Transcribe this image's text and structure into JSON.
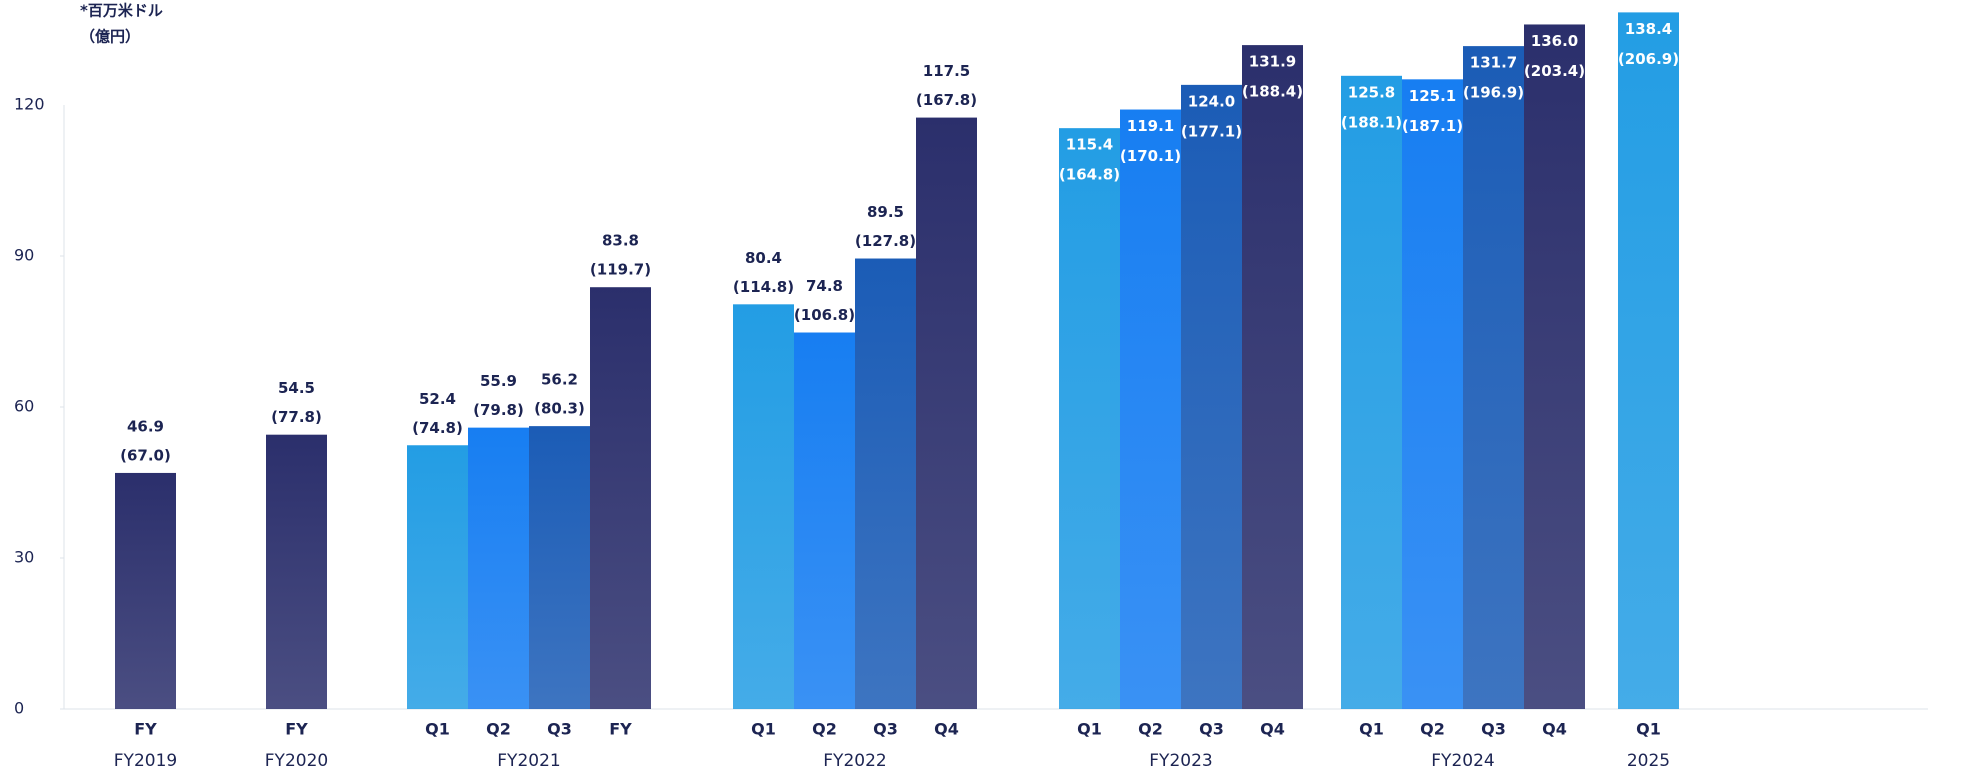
{
  "chart_data": {
    "type": "grouped-bar",
    "unit_label": "*百万米ドル",
    "secondary_unit_label": "（億円）",
    "ylim": [
      0,
      120
    ],
    "yticks": [
      0,
      30,
      60,
      90,
      120
    ],
    "groups": [
      {
        "name": "FY2019",
        "categories": [
          "FY"
        ],
        "values": [
          46.9
        ],
        "value_labels": [
          "46.9"
        ],
        "secondary_labels": [
          "(67.0)"
        ],
        "colors": [
          "#2b2f6c"
        ],
        "labels_inside": false
      },
      {
        "name": "FY2020",
        "categories": [
          "FY"
        ],
        "values": [
          54.5
        ],
        "value_labels": [
          "54.5"
        ],
        "secondary_labels": [
          "(77.8)"
        ],
        "colors": [
          "#2b2f6c"
        ],
        "labels_inside": false
      },
      {
        "name": "FY2021",
        "categories": [
          "Q1",
          "Q2",
          "Q3",
          "FY"
        ],
        "values": [
          52.4,
          55.9,
          56.2,
          83.8
        ],
        "value_labels": [
          "52.4",
          "55.9",
          "56.2",
          "83.8"
        ],
        "secondary_labels": [
          "(74.8)",
          "(79.8)",
          "(80.3)",
          "(119.7)"
        ],
        "colors": [
          "#239de4",
          "#177ef2",
          "#1b5cb6",
          "#2b2f6c"
        ],
        "labels_inside": false
      },
      {
        "name": "FY2022",
        "categories": [
          "Q1",
          "Q2",
          "Q3",
          "Q4"
        ],
        "values": [
          80.4,
          74.8,
          89.5,
          117.5
        ],
        "value_labels": [
          "80.4",
          "74.8",
          "89.5",
          "117.5"
        ],
        "secondary_labels": [
          "(114.8)",
          "(106.8)",
          "(127.8)",
          "(167.8)"
        ],
        "colors": [
          "#239de4",
          "#177ef2",
          "#1b5cb6",
          "#2b2f6c"
        ],
        "labels_inside": false
      },
      {
        "name": "FY2023",
        "categories": [
          "Q1",
          "Q2",
          "Q3",
          "Q4"
        ],
        "values": [
          115.4,
          119.1,
          124.0,
          131.9
        ],
        "value_labels": [
          "115.4",
          "119.1",
          "124.0",
          "131.9"
        ],
        "secondary_labels": [
          "(164.8)",
          "(170.1)",
          "(177.1)",
          "(188.4)"
        ],
        "colors": [
          "#239de4",
          "#177ef2",
          "#1b5cb6",
          "#2b2f6c"
        ],
        "labels_inside": true
      },
      {
        "name": "FY2024",
        "categories": [
          "Q1",
          "Q2",
          "Q3",
          "Q4"
        ],
        "values": [
          125.8,
          125.1,
          131.7,
          136.0
        ],
        "value_labels": [
          "125.8",
          "125.1",
          "131.7",
          "136.0"
        ],
        "secondary_labels": [
          "(188.1)",
          "(187.1)",
          "(196.9)",
          "(203.4)"
        ],
        "colors": [
          "#239de4",
          "#177ef2",
          "#1b5cb6",
          "#2b2f6c"
        ],
        "labels_inside": true
      },
      {
        "name": "2025",
        "categories": [
          "Q1"
        ],
        "values": [
          138.4
        ],
        "value_labels": [
          "138.4"
        ],
        "secondary_labels": [
          "(206.9)"
        ],
        "colors": [
          "#239de4"
        ],
        "labels_inside": true
      }
    ]
  }
}
